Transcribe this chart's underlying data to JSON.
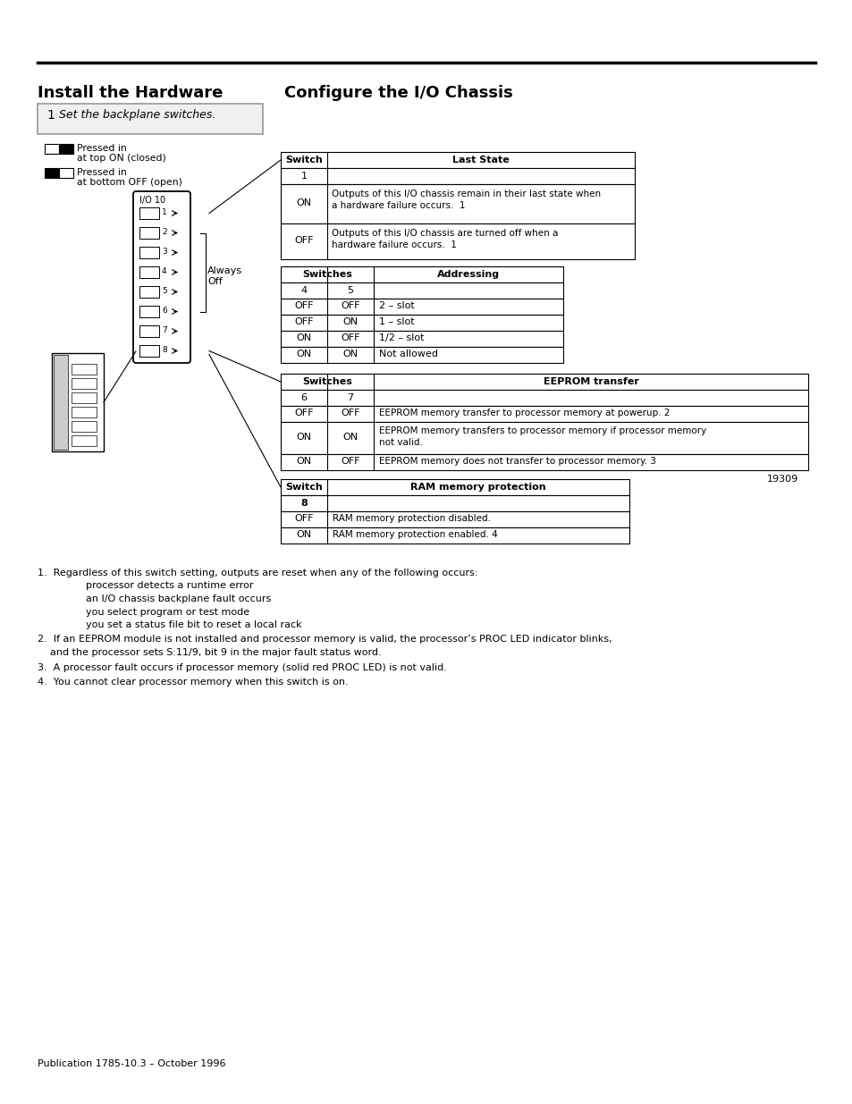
{
  "title_left": "Install the Hardware",
  "title_right": "Configure the I/O Chassis",
  "step_text": "1   Set the backplane switches.",
  "table1_col1": [
    "1",
    "ON",
    "OFF"
  ],
  "table1_col2_on": "Outputs of this I/O chassis remain in their last state when\na hardware failure occurs.  1",
  "table1_col2_off": "Outputs of this I/O chassis are turned off when a\nhardware failure occurs.  1",
  "table2_rows": [
    [
      "OFF",
      "OFF",
      "2 – slot"
    ],
    [
      "OFF",
      "ON",
      "1 – slot"
    ],
    [
      "ON",
      "OFF",
      "1/2 – slot"
    ],
    [
      "ON",
      "ON",
      "Not allowed"
    ]
  ],
  "table3_rows": [
    [
      "OFF",
      "OFF",
      "EEPROM memory transfer to processor memory at powerup. 2",
      false
    ],
    [
      "ON",
      "ON",
      "EEPROM memory transfers to processor memory if processor memory\nnot valid.",
      true
    ],
    [
      "ON",
      "OFF",
      "EEPROM memory does not transfer to processor memory. 3",
      false
    ]
  ],
  "table4_rows": [
    [
      "OFF",
      "RAM memory protection disabled."
    ],
    [
      "ON",
      "RAM memory protection enabled. 4"
    ]
  ],
  "figure_number": "19309",
  "publication": "Publication 1785-10.3 – October 1996",
  "footnote1a": "1.  Regardless of this switch setting, outputs are reset when any of the following occurs:",
  "footnote1b": [
    "processor detects a runtime error",
    "an I/O chassis backplane fault occurs",
    "you select program or test mode",
    "you set a status file bit to reset a local rack"
  ],
  "footnote2": "2.  If an EEPROM module is not installed and processor memory is valid, the processor’s PROC LED indicator blinks,\n    and the processor sets S:11/9, bit 9 in the major fault status word.",
  "footnote3": "3.  A processor fault occurs if processor memory (solid red PROC LED) is not valid.",
  "footnote4": "4.  You cannot clear processor memory when this switch is on."
}
